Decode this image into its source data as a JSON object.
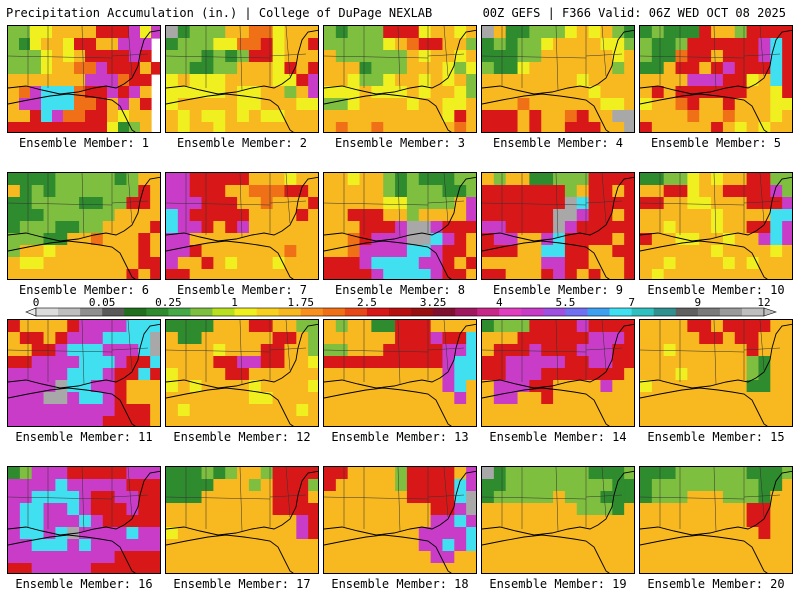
{
  "header": {
    "left": "Precipitation Accumulation (in.) | College of DuPage NEXLAB",
    "right": "00Z GEFS | F366 Valid: 06Z WED OCT 08 2025"
  },
  "panels": [
    {
      "label": "Ensemble Member: 1",
      "cells": "ggYYAAAARRRMYM/gGYAAYRRAAMMM/gggYAYARRRRMR/gggYAArrMRRRmR/AAAAAAAMMMrRR/ArMcccrRRMRMA/AMMcccrrRAMAR/AARcMrrRRAYAA/RRRRRRRRRYGgA",
      "outline": "#000"
    },
    {
      "label": "Ensemble Member: 2",
      "cells": "WGgggAArrYAAA/GgggYYrrRYAAR/gggGgGgRRYAAA/ggGGggAAAYRAR/YAYYYAAAAYYRM/YYYYYAYYAAgAM/YAAAAAYYAAAYY/AYAYYAYAYYAAA/AYAAYAAAAAAAA",
      "outline": "#000"
    },
    {
      "label": "Ensemble Member: 3",
      "cells": "gGgggRRRYAAYA/gggggYArRRAAg/AggggggAYAAYA/AAAGgggAAAYgY/AAYggYAAYAYAg/YYYAYYYAYAAYg/ggYAAAAYAAYYA/AAAAAAAAAAYRA/ArAArAAAAAArA",
      "outline": "#000"
    },
    {
      "label": "Ensemble Member: 4",
      "cells": "WAGGgggYAYAgG/GgGggYAAAAYYg/GGGggAAAAAAYA/gGGYAAAAAAAgA/AAAAAAAAYAAAA/AAAAAAAAAYAAA/AAArAAAAAAYYA/RRRARAArRAAWW/RRRARAARRRAAW",
      "outline": "#000"
    },
    {
      "label": "Ensemble Member: 5",
      "cells": "GgGGGRAAgRRRR/gGGgRRRRRRMcR/gGGrRRARRRMcR/GGARRARMRRRcR/AAAAMMMRRYAcR/ARARRRRRRAAYR/YAArRAARAAAYY/AAAArAArAAAYA/RAAAAARAYAYAA",
      "outline": "#000"
    },
    {
      "label": "Ensemble Member: 6",
      "cells": "GGGGgggggGgAA/AGgGgggggggRA/GGggggGGggRRA/GGGggggggAAAA/GgggGGggAAAAR/gggGGAArAAARA/gAAYAAAAAAARA/AYYAAAAAAAARR/AAAAAAAAAARAR",
      "outline": "#000"
    },
    {
      "label": "Ensemble Member: 7",
      "cells": "MMRRRRRAAAYAA/MMRRRAArrrRRA/MMMRRRAArAAAR/cMRRRRRAAAARA/cMMRARMAAAAAA/MMAAAAAAAAAAA/MMRAAAAAAArAA/MAARAYAAAYAAA/RRAAAAAAAAAAA",
      "outline": "#000"
    },
    {
      "label": "Ensemble Member: 8",
      "cells": "AAYAAgGgGGGgg/AAAAAgGgggGGg/AAAAAYYggggAM/AARRRAAgAAAAM/AAARRRMWWMRRR/AArRMMMWWcMRA/AArMMMMccMRRA/RRRMccccMMRAR/RRRRMccccMRRA",
      "outline": "#000"
    },
    {
      "label": "Ensemble Member: 9",
      "cells": "AgAAGGgggRRRR/RRRRRRRgARRAR/RRRRRRRWcRRRR/RRRRRRWWMRRAR/MMRRRRWMRRRRR/RMMAAMcRRRRAR/RRRAAccRRAARR/AAAAAMMRRAAAR/RRAAARMRARAAR",
      "outline": "#000"
    },
    {
      "label": "Ensemble Member: 10",
      "cells": "GGggYAYAARRgg/AARRYAARRRRMg/RRAAYYAAARRRM/AAAAAAYAAAAcc/AAYAAAYAARRcM/RAAYYAAYAAMcM/AAAAAAYAAAAYA/AAYAAAAYAYAAA/AYAAAAAAAAAAA",
      "outline": "#000"
    },
    {
      "label": "Ensemble Member: 11",
      "cells": "RAAAARMMMMccc/ARRARMMMccccW/AARRMcccMMMcW/RRMMMMcccMRRc/MMMMMcccMRRcR/MMMMWccMMRAAA/MMMWWMccMRAAA/MMMMMMMMMRRRA/MMMMMMMMRRRRA",
      "outline": "#000"
    },
    {
      "label": "Ensemble Member: 12",
      "cells": "GGGGAAARRAAgg/AGGAAAAAARRAg/AAAAYAAARRAAg/AAAARRMMRRAAY/YAAAARRAAAAAA/YAYAAAAYAAAAY/AAAAAAAYYAAAA/AYAAAAAAAAAYA/AAAAAAAAAAAAA",
      "outline": "#000"
    },
    {
      "label": "Ensemble Member: 13",
      "cells": "AgAAGGRRRAAAA/AAAAAARRRMRRc/ggAAARRRRRMMc/RRRRRRRRRRMcc/AAAAAAAAAAMcc/AAAAAAAAAAMcA/AAAAAAAAAAAMA/AAAAAAAAAAAAA/AAAAAAAAAAAAA",
      "outline": "#000"
    },
    {
      "label": "Ensemble Member: 14",
      "cells": "GgggRRRRMRRRR/AAARRRRRRMMMR/ARRRMRRRMMMRR/RRMMMMMRRMMRR/RRMMMRRRRRRRA/AMMMRRAAAAMAA/AMMAARAAAAAAA/AAAAAAAAAAAAA/AAAAAAAAAAAAA",
      "outline": "#000"
    },
    {
      "label": "Ensemble Member: 15",
      "cells": "AAAARRARRRRAA/AAAAARRARRAAA/AAYAAAAAARAAA/AAAAAAAAAgGAA/AAAYAAAAAgGAA/YAAAAAAAAGGAA/AAAAAAAAAAAAA/AAAAAAAAAAAAA/AAAAAAAAAAAAA",
      "outline": "#000"
    },
    {
      "label": "Ensemble Member: 16",
      "cells": "GgMMMRRRRRMMM/MMMMcMMMMMRRR/MMccccMRRMMRR/MccMMcMRRRMRR/MccMMMcMRRRRR/MccMcWMMMMcMM/MMcccMcMMMMMM/MMMMMMMMMRRRR/RRMMMMMRRRRRR",
      "outline": "#000"
    },
    {
      "label": "Ensemble Member: 17",
      "cells": "GGGgGgAAgRRRR/GGGGAAAgARRRg/GGGAAAAAARRRA/AAAAAAAAARRRR/AAAAAAAAAAAMR/YAAAAAAAAAAMR/AAAAAAAAAAAAA/AAAAAAAAAAAAA/AAAAAAAAAAAAA",
      "outline": "#000"
    },
    {
      "label": "Ensemble Member: 18",
      "cells": "RRAAAAgRRRRAM/RAAAAAgRRRRcM/AAAAAAARRRRcW/AAAAAAAAARRMW/AAAAAAAAAMMcM/AAAAAAAAMMMMc/AAAAAAAAMMcMc/AAAAAAAAAMMAA/AAAAAAAAAAAAA",
      "outline": "#000"
    },
    {
      "label": "Ensemble Member: 19",
      "cells": "WGgggggggGGGg/GGgggggggggGG/GgggggAgggGGG/AAAAAAAAgggGA/AAAAAAAAAAAAA/AAAAAAAAAAAAA/AAAAAAAAAAAAA/AAAAAAAAAAAAA/AAAAAAAAAAAAA",
      "outline": "#000"
    },
    {
      "label": "Ensemble Member: 20",
      "cells": "GGGggggggGGGg/GgggggggggGGA/GgggAAAgggGAA/AAAAAAAAARRAA/AAAAAAAAARRAA/AAAAAAAAAARAA/AAAAAAAAAAAAA/AAAAAAAAAAAAA/AAAAAAAAAAAAA",
      "outline": "#000"
    }
  ],
  "palette": {
    "W": "#a8a8a8",
    "G": "#2e8b2e",
    "g": "#7fbf3f",
    "Y": "#f0f020",
    "A": "#f8b820",
    "r": "#f07018",
    "R": "#d81818",
    "M": "#c83cc8",
    "c": "#40e0f0"
  },
  "colorbar": {
    "colors": [
      "#dcdcdc",
      "#bebebe",
      "#8f8f8f",
      "#5a5a5a",
      "#1f6f1f",
      "#2e8b2e",
      "#46a846",
      "#7fbf3f",
      "#b8e020",
      "#f0f020",
      "#f8d020",
      "#f8b820",
      "#f89020",
      "#f07018",
      "#e84818",
      "#d81818",
      "#b81010",
      "#981010",
      "#801030",
      "#a01860",
      "#c82888",
      "#e040c0",
      "#c83cc8",
      "#a050e0",
      "#7070f0",
      "#40a0f0",
      "#40e0f0",
      "#30c0c0",
      "#309090",
      "#606060",
      "#7a7a7a",
      "#9a9a9a",
      "#bebebe"
    ],
    "tick_labels": [
      "0",
      "0.05",
      "0.25",
      "1",
      "1.75",
      "2.5",
      "3.25",
      "4",
      "5.5",
      "7",
      "9",
      "12"
    ]
  }
}
